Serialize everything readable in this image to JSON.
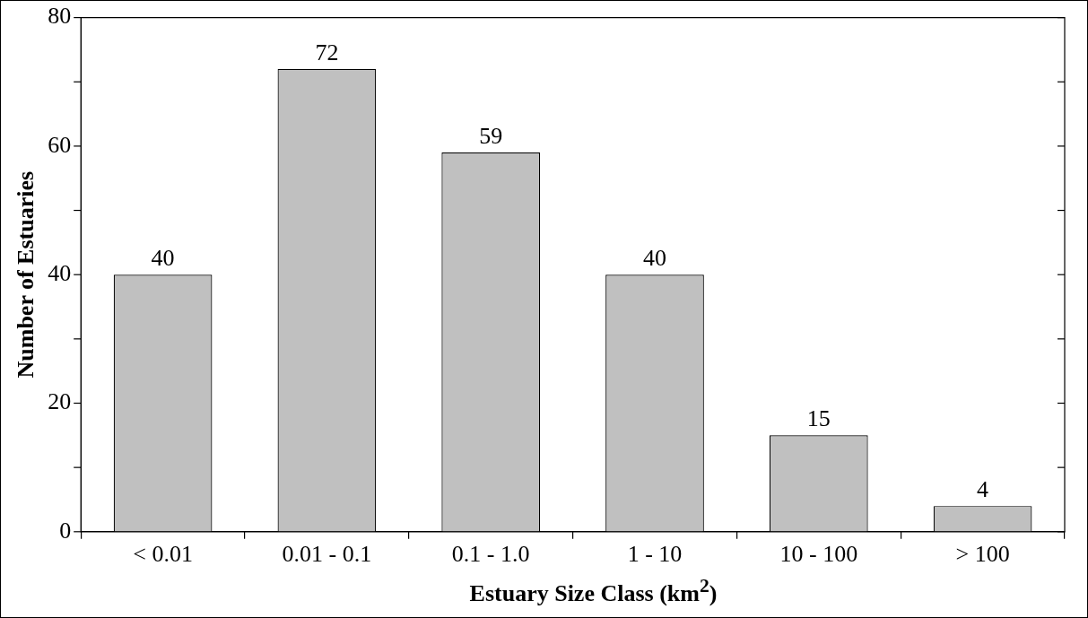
{
  "chart_data": {
    "type": "bar",
    "xlabel": "Estuary Size Class (km$^{2}$)",
    "ylabel": "Number of Estuaries",
    "categories": [
      "< 0.01",
      "0.01 - 0.1",
      "0.1 - 1.0",
      "1 - 10",
      "10 - 100",
      "> 100"
    ],
    "values": [
      40,
      72,
      59,
      40,
      15,
      4
    ],
    "color": "#c0c0c0",
    "ylim": [
      0,
      80
    ],
    "yticks": [
      0,
      {
        "value": 10,
        "label": null
      },
      20,
      {
        "value": 30,
        "label": null
      },
      40,
      {
        "value": 50,
        "label": null
      },
      60,
      {
        "value": 70,
        "label": null
      },
      80
    ],
    "data_labels": true
  }
}
